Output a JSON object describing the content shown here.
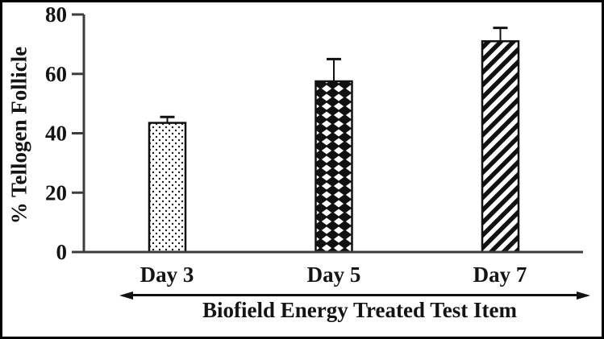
{
  "chart_data": {
    "type": "bar",
    "title": "",
    "categories": [
      "Day 3",
      "Day 5",
      "Day 7"
    ],
    "values": [
      43.5,
      57.5,
      71
    ],
    "error_up": [
      2,
      7.5,
      4.5
    ],
    "ylabel": "% Tellogen Follicle",
    "xlabel": "Biofield Energy Treated Test Item",
    "ylim": [
      0,
      80
    ],
    "yticks": [
      0,
      20,
      40,
      60,
      80
    ],
    "grid": false,
    "legend_position": "none",
    "bar_patterns": [
      "small-dots",
      "diamond-checker",
      "diagonal-stripes"
    ],
    "colors": {
      "ink": "#111111",
      "axis": "#3d3d3d",
      "text": "#141414",
      "background": "#ffffff",
      "frame_border": "#000000"
    }
  }
}
